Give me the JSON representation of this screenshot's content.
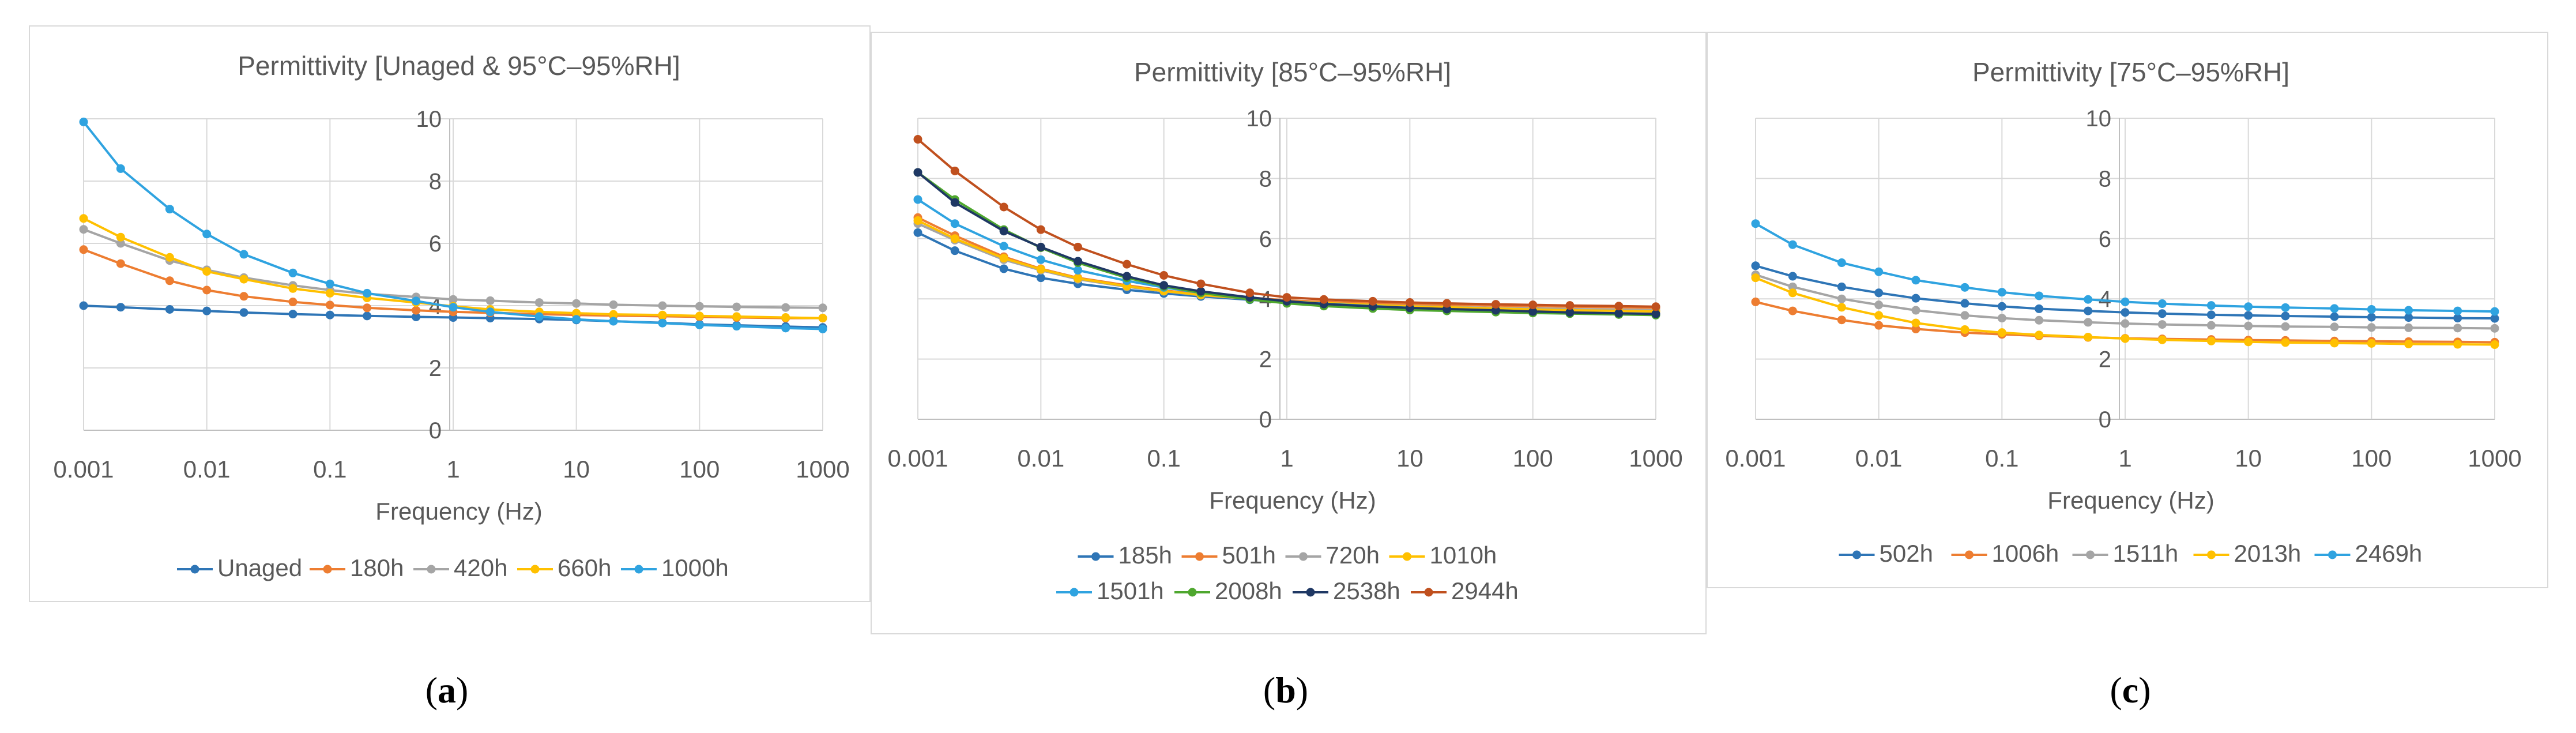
{
  "x_ticks": [
    "0.001",
    "0.01",
    "0.1",
    "1",
    "10",
    "100",
    "1000"
  ],
  "y_ticks": [
    "0",
    "2",
    "4",
    "6",
    "8",
    "10"
  ],
  "captions": [
    {
      "open": "(",
      "letter": "a",
      "close": ")"
    },
    {
      "open": "(",
      "letter": "b",
      "close": ")"
    },
    {
      "open": "(",
      "letter": "c",
      "close": ")"
    }
  ],
  "chart_data": [
    {
      "type": "line",
      "title": "Permittivity [Unaged & 95°C–95%RH]",
      "xlabel": "Frequency (Hz)",
      "ylabel": "",
      "xscale": "log",
      "xlim": [
        0.001,
        1000
      ],
      "ylim": [
        0,
        10
      ],
      "legend_position": "bottom",
      "x": [
        0.001,
        0.002,
        0.005,
        0.01,
        0.02,
        0.05,
        0.1,
        0.2,
        0.5,
        1,
        2,
        5,
        10,
        20,
        50,
        100,
        200,
        500,
        1000
      ],
      "series": [
        {
          "name": "Unaged",
          "color": "#2e75b6",
          "values": [
            4.0,
            3.95,
            3.88,
            3.83,
            3.78,
            3.73,
            3.7,
            3.67,
            3.64,
            3.62,
            3.6,
            3.57,
            3.54,
            3.5,
            3.45,
            3.4,
            3.37,
            3.33,
            3.3
          ]
        },
        {
          "name": "180h",
          "color": "#ed7d31",
          "values": [
            5.8,
            5.35,
            4.8,
            4.5,
            4.3,
            4.12,
            4.02,
            3.93,
            3.85,
            3.8,
            3.77,
            3.73,
            3.7,
            3.68,
            3.66,
            3.64,
            3.62,
            3.6,
            3.6
          ]
        },
        {
          "name": "420h",
          "color": "#a5a5a5",
          "values": [
            6.45,
            6.0,
            5.45,
            5.15,
            4.9,
            4.65,
            4.5,
            4.38,
            4.28,
            4.2,
            4.16,
            4.1,
            4.07,
            4.03,
            4.0,
            3.98,
            3.96,
            3.94,
            3.93
          ]
        },
        {
          "name": "660h",
          "color": "#ffc000",
          "values": [
            6.8,
            6.2,
            5.55,
            5.1,
            4.85,
            4.55,
            4.4,
            4.25,
            4.1,
            3.98,
            3.88,
            3.8,
            3.76,
            3.72,
            3.7,
            3.67,
            3.65,
            3.62,
            3.6
          ]
        },
        {
          "name": "1000h",
          "color": "#2fa3e0",
          "values": [
            9.9,
            8.4,
            7.1,
            6.3,
            5.65,
            5.05,
            4.7,
            4.4,
            4.15,
            3.95,
            3.8,
            3.65,
            3.56,
            3.5,
            3.44,
            3.38,
            3.34,
            3.28,
            3.25
          ]
        }
      ]
    },
    {
      "type": "line",
      "title": "Permittivity [85°C–95%RH]",
      "xlabel": "Frequency (Hz)",
      "ylabel": "",
      "xscale": "log",
      "xlim": [
        0.001,
        1000
      ],
      "ylim": [
        0,
        10
      ],
      "legend_position": "bottom",
      "x": [
        0.001,
        0.002,
        0.005,
        0.01,
        0.02,
        0.05,
        0.1,
        0.2,
        0.5,
        1,
        2,
        5,
        10,
        20,
        50,
        100,
        200,
        500,
        1000
      ],
      "series": [
        {
          "name": "185h",
          "color": "#2e75b6",
          "values": [
            6.2,
            5.6,
            5.0,
            4.7,
            4.5,
            4.3,
            4.18,
            4.08,
            3.97,
            3.88,
            3.8,
            3.72,
            3.67,
            3.63,
            3.58,
            3.55,
            3.53,
            3.5,
            3.48
          ]
        },
        {
          "name": "501h",
          "color": "#ed7d31",
          "values": [
            6.7,
            6.1,
            5.4,
            5.0,
            4.7,
            4.45,
            4.28,
            4.15,
            4.04,
            3.95,
            3.9,
            3.85,
            3.82,
            3.8,
            3.78,
            3.76,
            3.74,
            3.72,
            3.7
          ]
        },
        {
          "name": "720h",
          "color": "#a5a5a5",
          "values": [
            6.5,
            5.95,
            5.3,
            4.95,
            4.65,
            4.4,
            4.25,
            4.12,
            4.0,
            3.92,
            3.86,
            3.8,
            3.76,
            3.73,
            3.7,
            3.68,
            3.66,
            3.64,
            3.62
          ]
        },
        {
          "name": "1010h",
          "color": "#ffc000",
          "values": [
            6.6,
            6.0,
            5.35,
            4.98,
            4.68,
            4.42,
            4.26,
            4.13,
            4.01,
            3.92,
            3.86,
            3.8,
            3.75,
            3.72,
            3.68,
            3.65,
            3.62,
            3.6,
            3.58
          ]
        },
        {
          "name": "1501h",
          "color": "#2fa3e0",
          "values": [
            7.3,
            6.5,
            5.75,
            5.3,
            4.95,
            4.6,
            4.38,
            4.2,
            4.03,
            3.92,
            3.84,
            3.76,
            3.7,
            3.65,
            3.6,
            3.57,
            3.54,
            3.5,
            3.48
          ]
        },
        {
          "name": "2008h",
          "color": "#4ea72e",
          "values": [
            8.2,
            7.3,
            6.3,
            5.7,
            5.2,
            4.7,
            4.42,
            4.2,
            3.98,
            3.85,
            3.76,
            3.68,
            3.63,
            3.6,
            3.56,
            3.53,
            3.51,
            3.48,
            3.46
          ]
        },
        {
          "name": "2538h",
          "color": "#1f3864",
          "values": [
            8.2,
            7.2,
            6.25,
            5.72,
            5.25,
            4.75,
            4.45,
            4.25,
            4.05,
            3.92,
            3.83,
            3.75,
            3.7,
            3.66,
            3.62,
            3.58,
            3.55,
            3.52,
            3.5
          ]
        },
        {
          "name": "2944h",
          "color": "#c0501e",
          "values": [
            9.3,
            8.25,
            7.05,
            6.3,
            5.72,
            5.15,
            4.78,
            4.5,
            4.2,
            4.05,
            3.98,
            3.92,
            3.88,
            3.85,
            3.82,
            3.8,
            3.78,
            3.76,
            3.74
          ]
        }
      ]
    },
    {
      "type": "line",
      "title": "Permittivity [75°C–95%RH]",
      "xlabel": "Frequency (Hz)",
      "ylabel": "",
      "xscale": "log",
      "xlim": [
        0.001,
        1000
      ],
      "ylim": [
        0,
        10
      ],
      "legend_position": "bottom",
      "x": [
        0.001,
        0.002,
        0.005,
        0.01,
        0.02,
        0.05,
        0.1,
        0.2,
        0.5,
        1,
        2,
        5,
        10,
        20,
        50,
        100,
        200,
        500,
        1000
      ],
      "series": [
        {
          "name": "502h",
          "color": "#2e75b6",
          "values": [
            5.1,
            4.75,
            4.4,
            4.2,
            4.02,
            3.85,
            3.75,
            3.67,
            3.6,
            3.55,
            3.51,
            3.47,
            3.45,
            3.43,
            3.41,
            3.39,
            3.38,
            3.36,
            3.35
          ]
        },
        {
          "name": "1006h",
          "color": "#ed7d31",
          "values": [
            3.9,
            3.6,
            3.3,
            3.12,
            3.0,
            2.88,
            2.82,
            2.77,
            2.72,
            2.69,
            2.67,
            2.65,
            2.63,
            2.62,
            2.6,
            2.59,
            2.58,
            2.57,
            2.56
          ]
        },
        {
          "name": "1511h",
          "color": "#a5a5a5",
          "values": [
            4.8,
            4.4,
            4.0,
            3.8,
            3.62,
            3.45,
            3.36,
            3.29,
            3.22,
            3.18,
            3.15,
            3.12,
            3.1,
            3.08,
            3.07,
            3.05,
            3.04,
            3.03,
            3.02
          ]
        },
        {
          "name": "2013h",
          "color": "#ffc000",
          "values": [
            4.7,
            4.2,
            3.72,
            3.45,
            3.2,
            2.98,
            2.88,
            2.8,
            2.73,
            2.68,
            2.64,
            2.6,
            2.57,
            2.55,
            2.53,
            2.52,
            2.5,
            2.49,
            2.48
          ]
        },
        {
          "name": "2469h",
          "color": "#2fa3e0",
          "values": [
            6.5,
            5.8,
            5.2,
            4.9,
            4.62,
            4.38,
            4.22,
            4.1,
            3.98,
            3.9,
            3.84,
            3.78,
            3.74,
            3.71,
            3.68,
            3.65,
            3.62,
            3.6,
            3.58
          ]
        }
      ]
    }
  ]
}
